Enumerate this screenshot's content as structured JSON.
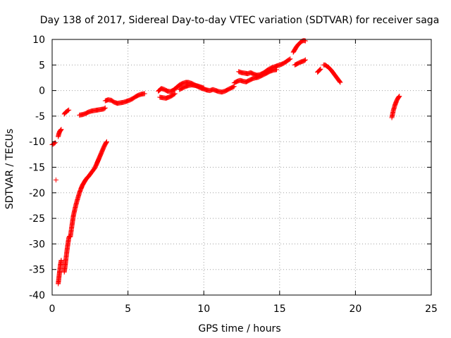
{
  "chart_data": {
    "type": "scatter",
    "title": "Day 138 of 2017, Sidereal Day-to-day VTEC variation (SDTVAR) for receiver saga",
    "xlabel": "GPS time / hours",
    "ylabel": "SDTVAR / TECUs",
    "xlim": [
      0,
      25
    ],
    "ylim": [
      -40,
      10
    ],
    "xticks": [
      0,
      5,
      10,
      15,
      20,
      25
    ],
    "yticks": [
      -40,
      -35,
      -30,
      -25,
      -20,
      -15,
      -10,
      -5,
      0,
      5,
      10
    ],
    "grid": true,
    "marker": "+",
    "marker_color": "#ff0000",
    "series": [
      {
        "name": "SDTVAR",
        "segments": [
          [
            [
              0.0,
              -10.6
            ],
            [
              0.1,
              -10.4
            ],
            [
              0.2,
              -10.2
            ]
          ],
          [
            [
              0.25,
              -17.5
            ]
          ],
          [
            [
              0.4,
              -37.8
            ],
            [
              0.45,
              -36.5
            ],
            [
              0.5,
              -35.2
            ],
            [
              0.55,
              -34.0
            ],
            [
              0.6,
              -33.2
            ]
          ],
          [
            [
              0.4,
              -9.0
            ],
            [
              0.45,
              -8.4
            ],
            [
              0.5,
              -8.0
            ],
            [
              0.55,
              -7.8
            ],
            [
              0.6,
              -7.6
            ]
          ],
          [
            [
              0.8,
              -35.5
            ],
            [
              0.85,
              -34.5
            ],
            [
              0.9,
              -33.2
            ],
            [
              0.95,
              -32.0
            ],
            [
              1.0,
              -30.8
            ],
            [
              1.05,
              -29.8
            ],
            [
              1.1,
              -28.8
            ],
            [
              1.15,
              -28.5
            ]
          ],
          [
            [
              0.8,
              -4.6
            ],
            [
              0.9,
              -4.2
            ],
            [
              1.0,
              -4.0
            ],
            [
              1.1,
              -3.8
            ]
          ],
          [
            [
              1.2,
              -28.6
            ],
            [
              1.3,
              -26.5
            ],
            [
              1.4,
              -24.5
            ],
            [
              1.5,
              -23.2
            ],
            [
              1.6,
              -22.0
            ],
            [
              1.7,
              -21.0
            ],
            [
              1.8,
              -20.0
            ],
            [
              1.9,
              -19.2
            ],
            [
              2.0,
              -18.5
            ],
            [
              2.1,
              -18.0
            ],
            [
              2.2,
              -17.5
            ],
            [
              2.3,
              -17.1
            ],
            [
              2.4,
              -16.8
            ],
            [
              2.5,
              -16.4
            ],
            [
              2.6,
              -16.0
            ],
            [
              2.7,
              -15.6
            ],
            [
              2.8,
              -15.2
            ],
            [
              2.9,
              -14.6
            ],
            [
              3.0,
              -13.9
            ],
            [
              3.1,
              -13.2
            ],
            [
              3.2,
              -12.5
            ],
            [
              3.3,
              -11.8
            ],
            [
              3.4,
              -11.1
            ],
            [
              3.5,
              -10.5
            ],
            [
              3.6,
              -10.0
            ]
          ],
          [
            [
              1.8,
              -4.8
            ],
            [
              2.0,
              -4.7
            ],
            [
              2.2,
              -4.5
            ],
            [
              2.4,
              -4.2
            ],
            [
              2.6,
              -4.0
            ],
            [
              2.8,
              -3.9
            ],
            [
              3.0,
              -3.8
            ],
            [
              3.2,
              -3.7
            ],
            [
              3.4,
              -3.6
            ],
            [
              3.5,
              -3.4
            ]
          ],
          [
            [
              3.5,
              -2.0
            ],
            [
              3.7,
              -1.8
            ],
            [
              3.9,
              -1.9
            ],
            [
              4.1,
              -2.3
            ],
            [
              4.3,
              -2.5
            ],
            [
              4.5,
              -2.4
            ],
            [
              4.7,
              -2.3
            ],
            [
              4.9,
              -2.1
            ],
            [
              5.1,
              -1.9
            ],
            [
              5.3,
              -1.6
            ],
            [
              5.5,
              -1.2
            ],
            [
              5.7,
              -0.9
            ],
            [
              5.9,
              -0.7
            ],
            [
              6.1,
              -0.6
            ]
          ],
          [
            [
              7.1,
              -1.3
            ],
            [
              7.3,
              -1.4
            ],
            [
              7.5,
              -1.5
            ],
            [
              7.7,
              -1.3
            ],
            [
              7.9,
              -1.0
            ],
            [
              8.1,
              -0.6
            ]
          ],
          [
            [
              7.0,
              -0.1
            ],
            [
              7.2,
              0.4
            ],
            [
              7.4,
              0.2
            ],
            [
              7.6,
              -0.1
            ],
            [
              7.8,
              -0.2
            ],
            [
              8.0,
              0.1
            ],
            [
              8.2,
              0.6
            ],
            [
              8.4,
              1.1
            ],
            [
              8.6,
              1.4
            ],
            [
              8.8,
              1.6
            ],
            [
              9.0,
              1.6
            ],
            [
              9.2,
              1.4
            ],
            [
              9.4,
              1.1
            ],
            [
              9.6,
              0.8
            ],
            [
              9.8,
              0.5
            ],
            [
              10.0,
              0.3
            ],
            [
              10.2,
              0.1
            ],
            [
              10.4,
              0.0
            ],
            [
              10.6,
              0.2
            ],
            [
              10.8,
              0.0
            ],
            [
              11.0,
              -0.2
            ],
            [
              11.2,
              -0.3
            ],
            [
              11.4,
              -0.1
            ],
            [
              11.6,
              0.2
            ],
            [
              11.8,
              0.5
            ],
            [
              12.0,
              0.8
            ]
          ],
          [
            [
              8.4,
              0.2
            ],
            [
              8.6,
              0.5
            ],
            [
              8.8,
              0.8
            ],
            [
              9.0,
              1.0
            ],
            [
              9.2,
              1.1
            ],
            [
              9.4,
              1.0
            ],
            [
              9.6,
              0.9
            ],
            [
              9.8,
              0.7
            ],
            [
              10.0,
              0.5
            ]
          ],
          [
            [
              12.0,
              1.5
            ],
            [
              12.2,
              1.8
            ],
            [
              12.4,
              2.0
            ],
            [
              12.6,
              1.8
            ],
            [
              12.8,
              1.7
            ],
            [
              13.0,
              2.0
            ],
            [
              13.2,
              2.3
            ],
            [
              13.4,
              2.5
            ],
            [
              13.6,
              2.6
            ],
            [
              13.8,
              2.9
            ],
            [
              14.0,
              3.2
            ],
            [
              14.2,
              3.5
            ],
            [
              14.4,
              3.8
            ],
            [
              14.6,
              4.0
            ],
            [
              14.8,
              4.1
            ]
          ],
          [
            [
              12.3,
              3.7
            ],
            [
              12.5,
              3.5
            ],
            [
              12.7,
              3.4
            ],
            [
              12.9,
              3.3
            ],
            [
              13.1,
              3.5
            ],
            [
              13.3,
              3.2
            ],
            [
              13.5,
              3.0
            ],
            [
              13.7,
              3.1
            ],
            [
              13.9,
              3.4
            ],
            [
              14.1,
              3.8
            ],
            [
              14.3,
              4.2
            ],
            [
              14.5,
              4.5
            ],
            [
              14.7,
              4.7
            ],
            [
              14.9,
              4.9
            ],
            [
              15.1,
              5.1
            ],
            [
              15.3,
              5.4
            ],
            [
              15.5,
              5.8
            ],
            [
              15.7,
              6.2
            ]
          ],
          [
            [
              15.9,
              7.5
            ],
            [
              16.0,
              8.0
            ],
            [
              16.1,
              8.5
            ],
            [
              16.2,
              8.9
            ],
            [
              16.3,
              9.2
            ],
            [
              16.4,
              9.5
            ],
            [
              16.5,
              9.7
            ],
            [
              16.6,
              9.8
            ],
            [
              16.7,
              9.7
            ]
          ],
          [
            [
              16.0,
              5.0
            ],
            [
              16.2,
              5.3
            ],
            [
              16.4,
              5.6
            ],
            [
              16.6,
              5.8
            ],
            [
              16.7,
              6.0
            ]
          ],
          [
            [
              17.5,
              3.6
            ],
            [
              17.6,
              3.9
            ],
            [
              17.7,
              4.2
            ]
          ],
          [
            [
              17.9,
              5.0
            ],
            [
              18.0,
              5.0
            ],
            [
              18.1,
              4.8
            ],
            [
              18.2,
              4.6
            ],
            [
              18.3,
              4.3
            ],
            [
              18.4,
              4.0
            ],
            [
              18.5,
              3.6
            ],
            [
              18.6,
              3.2
            ],
            [
              18.7,
              2.8
            ],
            [
              18.8,
              2.4
            ],
            [
              18.9,
              2.0
            ],
            [
              19.0,
              1.6
            ]
          ],
          [
            [
              22.4,
              -5.3
            ],
            [
              22.45,
              -4.6
            ],
            [
              22.5,
              -3.9
            ],
            [
              22.55,
              -3.4
            ],
            [
              22.6,
              -2.9
            ],
            [
              22.65,
              -2.5
            ],
            [
              22.7,
              -2.1
            ],
            [
              22.75,
              -1.8
            ],
            [
              22.8,
              -1.5
            ],
            [
              22.85,
              -1.3
            ],
            [
              22.9,
              -1.1
            ]
          ]
        ]
      }
    ]
  }
}
